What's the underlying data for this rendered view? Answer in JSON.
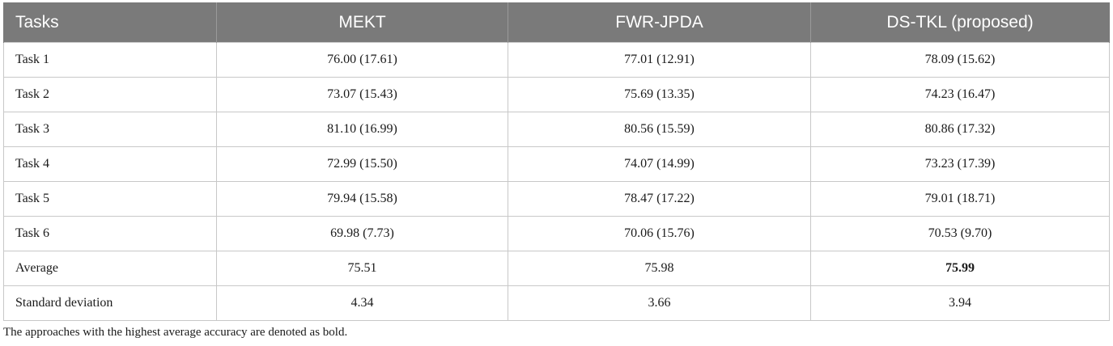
{
  "table": {
    "headers": [
      "Tasks",
      "MEKT",
      "FWR-JPDA",
      "DS-TKL (proposed)"
    ],
    "rows": [
      {
        "label": "Task 1",
        "values": [
          "76.00 (17.61)",
          "77.01 (12.91)",
          "78.09 (15.62)"
        ]
      },
      {
        "label": "Task 2",
        "values": [
          "73.07 (15.43)",
          "75.69 (13.35)",
          "74.23 (16.47)"
        ]
      },
      {
        "label": "Task 3",
        "values": [
          "81.10 (16.99)",
          "80.56 (15.59)",
          "80.86 (17.32)"
        ]
      },
      {
        "label": "Task 4",
        "values": [
          "72.99 (15.50)",
          "74.07 (14.99)",
          "73.23 (17.39)"
        ]
      },
      {
        "label": "Task 5",
        "values": [
          "79.94 (15.58)",
          "78.47 (17.22)",
          "79.01 (18.71)"
        ]
      },
      {
        "label": "Task 6",
        "values": [
          "69.98 (7.73)",
          "70.06 (15.76)",
          "70.53 (9.70)"
        ]
      },
      {
        "label": "Average",
        "values": [
          "75.51",
          "75.98",
          "75.99"
        ],
        "bold": [
          false,
          false,
          true
        ]
      },
      {
        "label": "Standard deviation",
        "values": [
          "4.34",
          "3.66",
          "3.94"
        ]
      }
    ]
  },
  "footnote": "The approaches with the highest average accuracy are denoted as bold.",
  "colors": {
    "header_background": "#7a7a7a",
    "header_text": "#ffffff",
    "grid": "#c8c8c8"
  }
}
